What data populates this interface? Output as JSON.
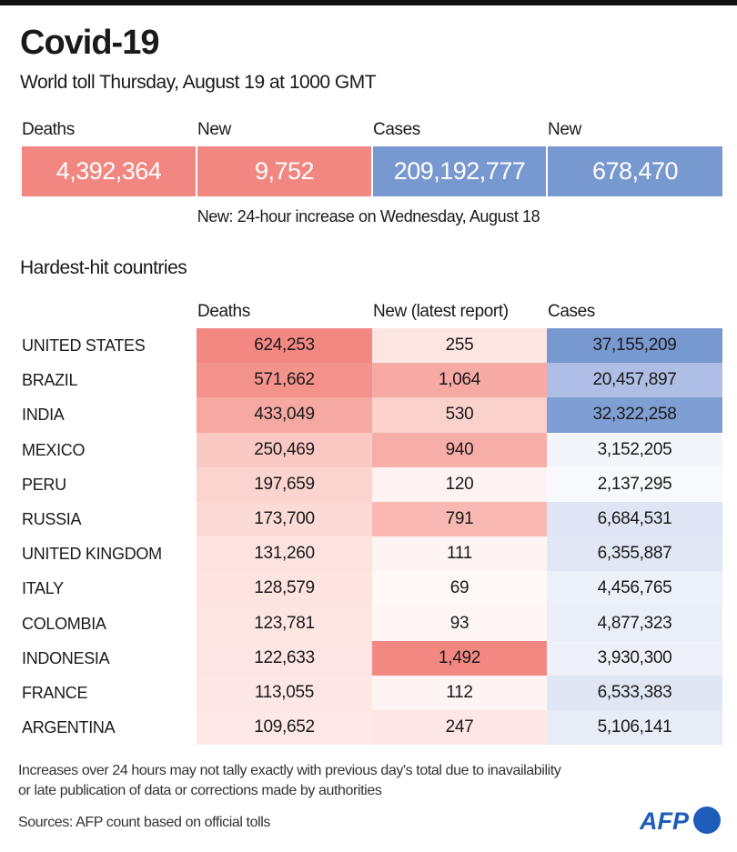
{
  "header": {
    "title": "Covid-19",
    "subtitle": "World toll Thursday, August 19 at 1000 GMT"
  },
  "summary": {
    "items": [
      {
        "label": "Deaths",
        "value": "4,392,364",
        "color": "#f28680"
      },
      {
        "label": "New",
        "value": "9,752",
        "color": "#f28680"
      },
      {
        "label": "Cases",
        "value": "209,192,777",
        "color": "#7898d0"
      },
      {
        "label": "New",
        "value": "678,470",
        "color": "#7898d0"
      }
    ],
    "note": "New: 24-hour increase on Wednesday, August 18"
  },
  "table": {
    "title": "Hardest-hit countries",
    "columns": [
      "Deaths",
      "New (latest report)",
      "Cases"
    ],
    "rows": [
      {
        "country": "UNITED STATES",
        "deaths": "624,253",
        "new": "255",
        "cases": "37,155,209",
        "deaths_bg": "#f38883",
        "new_bg": "#fde5e2",
        "cases_bg": "#7898d0"
      },
      {
        "country": "BRAZIL",
        "deaths": "571,662",
        "new": "1,064",
        "cases": "20,457,897",
        "deaths_bg": "#f4928c",
        "new_bg": "#f7aaa4",
        "cases_bg": "#aebee4"
      },
      {
        "country": "INDIA",
        "deaths": "433,049",
        "new": "530",
        "cases": "32,322,258",
        "deaths_bg": "#f6a9a3",
        "new_bg": "#fbd1cc",
        "cases_bg": "#7f9ed3"
      },
      {
        "country": "MEXICO",
        "deaths": "250,469",
        "new": "940",
        "cases": "3,152,205",
        "deaths_bg": "#fac9c4",
        "new_bg": "#f8aea8",
        "cases_bg": "#f3f5fb"
      },
      {
        "country": "PERU",
        "deaths": "197,659",
        "new": "120",
        "cases": "2,137,295",
        "deaths_bg": "#fbd4d0",
        "new_bg": "#fef3f2",
        "cases_bg": "#f8f9fd"
      },
      {
        "country": "RUSSIA",
        "deaths": "173,700",
        "new": "791",
        "cases": "6,684,531",
        "deaths_bg": "#fcdad6",
        "new_bg": "#f9b8b2",
        "cases_bg": "#dfe5f4"
      },
      {
        "country": "UNITED KINGDOM",
        "deaths": "131,260",
        "new": "111",
        "cases": "6,355,887",
        "deaths_bg": "#fde3e0",
        "new_bg": "#fef4f3",
        "cases_bg": "#e2e7f5"
      },
      {
        "country": "ITALY",
        "deaths": "128,579",
        "new": "69",
        "cases": "4,456,765",
        "deaths_bg": "#fde4e1",
        "new_bg": "#fef8f7",
        "cases_bg": "#ecf0f9"
      },
      {
        "country": "COLOMBIA",
        "deaths": "123,781",
        "new": "93",
        "cases": "4,877,323",
        "deaths_bg": "#fde5e2",
        "new_bg": "#fef6f5",
        "cases_bg": "#eaeef8"
      },
      {
        "country": "INDONESIA",
        "deaths": "122,633",
        "new": "1,492",
        "cases": "3,930,300",
        "deaths_bg": "#fde5e3",
        "new_bg": "#f38883",
        "cases_bg": "#eef1f9"
      },
      {
        "country": "FRANCE",
        "deaths": "113,055",
        "new": "112",
        "cases": "6,533,383",
        "deaths_bg": "#fde7e4",
        "new_bg": "#fef4f3",
        "cases_bg": "#e0e6f4"
      },
      {
        "country": "ARGENTINA",
        "deaths": "109,652",
        "new": "247",
        "cases": "5,106,141",
        "deaths_bg": "#fde8e5",
        "new_bg": "#fde6e3",
        "cases_bg": "#e8ecf7"
      }
    ]
  },
  "footer": {
    "note_line1": "Increases over 24 hours may not tally exactly with previous day's total due to inavailability",
    "note_line2": "or late publication of data or corrections made by authorities",
    "sources": "Sources: AFP count based on official tolls",
    "logo_text": "AFP",
    "logo_color": "#1d5cb8"
  }
}
